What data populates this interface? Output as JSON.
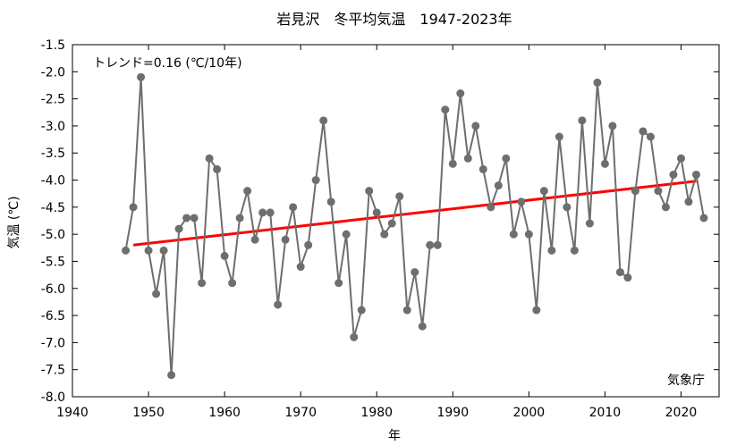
{
  "chart_data": {
    "type": "line",
    "title": "岩見沢　冬平均気温　1947-2023年",
    "xlabel": "年",
    "ylabel": "気温 (℃)",
    "xlim": [
      1940,
      2025
    ],
    "ylim": [
      -8.0,
      -1.5
    ],
    "xticks": [
      1940,
      1950,
      1960,
      1970,
      1980,
      1990,
      2000,
      2010,
      2020
    ],
    "yticks": [
      -8.0,
      -7.5,
      -7.0,
      -6.5,
      -6.0,
      -5.5,
      -5.0,
      -4.5,
      -4.0,
      -3.5,
      -3.0,
      -2.5,
      -2.0,
      -1.5
    ],
    "xtick_labels": [
      "1940",
      "1950",
      "1960",
      "1970",
      "1980",
      "1990",
      "2000",
      "2010",
      "2020"
    ],
    "ytick_labels": [
      "-8.0",
      "-7.5",
      "-7.0",
      "-6.5",
      "-6.0",
      "-5.5",
      "-5.0",
      "-4.5",
      "-4.0",
      "-3.5",
      "-3.0",
      "-2.5",
      "-2.0",
      "-1.5"
    ],
    "grid": false,
    "annotations": {
      "trend_text": "トレンド=0.16 (℃/10年)",
      "source": "気象庁"
    },
    "colors": {
      "series": "#6e6e6e",
      "trend": "#ff0000",
      "axes": "#000000"
    },
    "x": [
      1947,
      1948,
      1949,
      1950,
      1951,
      1952,
      1953,
      1954,
      1955,
      1956,
      1957,
      1958,
      1959,
      1960,
      1961,
      1962,
      1963,
      1964,
      1965,
      1966,
      1967,
      1968,
      1969,
      1970,
      1971,
      1972,
      1973,
      1974,
      1975,
      1976,
      1977,
      1978,
      1979,
      1980,
      1981,
      1982,
      1983,
      1984,
      1985,
      1986,
      1987,
      1988,
      1989,
      1990,
      1991,
      1992,
      1993,
      1994,
      1995,
      1996,
      1997,
      1998,
      1999,
      2000,
      2001,
      2002,
      2003,
      2004,
      2005,
      2006,
      2007,
      2008,
      2009,
      2010,
      2011,
      2012,
      2013,
      2014,
      2015,
      2016,
      2017,
      2018,
      2019,
      2020,
      2021,
      2022,
      2023
    ],
    "series": [
      {
        "values": [
          -5.3,
          -4.5,
          -2.1,
          -5.3,
          -6.1,
          -5.3,
          -7.6,
          -4.9,
          -4.7,
          -4.7,
          -5.9,
          -3.6,
          -3.8,
          -5.4,
          -5.9,
          -4.7,
          -4.2,
          -5.1,
          -4.6,
          -4.6,
          -6.3,
          -5.1,
          -4.5,
          -5.6,
          -5.2,
          -4.0,
          -2.9,
          -4.4,
          -5.9,
          -5.0,
          -6.9,
          -6.4,
          -4.2,
          -4.6,
          -5.0,
          -4.8,
          -4.3,
          -6.4,
          -5.7,
          -6.7,
          -5.2,
          -5.2,
          -2.7,
          -3.7,
          -2.4,
          -3.6,
          -3.0,
          -3.8,
          -4.5,
          -4.1,
          -3.6,
          -5.0,
          -4.4,
          -5.0,
          -6.4,
          -4.2,
          -5.3,
          -3.2,
          -4.5,
          -5.3,
          -2.9,
          -4.8,
          -2.2,
          -3.7,
          -3.0,
          -5.7,
          -5.8,
          -4.2,
          -3.1,
          -3.2,
          -4.2,
          -4.5,
          -3.9,
          -3.6,
          -4.4,
          -3.9,
          -4.7
        ]
      }
    ],
    "trend_line": {
      "x": [
        1948,
        2022
      ],
      "y": [
        -5.2,
        -4.02
      ]
    }
  }
}
